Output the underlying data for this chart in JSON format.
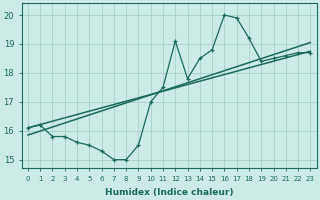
{
  "title": "",
  "xlabel": "Humidex (Indice chaleur)",
  "ylabel": "",
  "bg_color": "#cceae6",
  "line_color": "#1a6b5a",
  "grid_color": "#aed4ce",
  "x_data": [
    0,
    1,
    2,
    3,
    4,
    5,
    6,
    7,
    8,
    9,
    10,
    11,
    12,
    13,
    14,
    15,
    16,
    17,
    18,
    19,
    20,
    21,
    22,
    23
  ],
  "y_main": [
    16.1,
    16.2,
    15.8,
    15.8,
    15.6,
    15.5,
    15.3,
    15.0,
    15.0,
    15.5,
    17.0,
    17.5,
    19.1,
    17.8,
    18.5,
    18.8,
    20.0,
    19.9,
    19.2,
    18.4,
    18.5,
    18.6,
    18.7,
    18.7
  ],
  "ylim": [
    14.7,
    20.4
  ],
  "xlim": [
    -0.5,
    23.5
  ],
  "yticks": [
    15,
    16,
    17,
    18,
    19,
    20
  ],
  "trend1": [
    15.85,
    19.05
  ],
  "trend2": [
    16.1,
    18.75
  ]
}
